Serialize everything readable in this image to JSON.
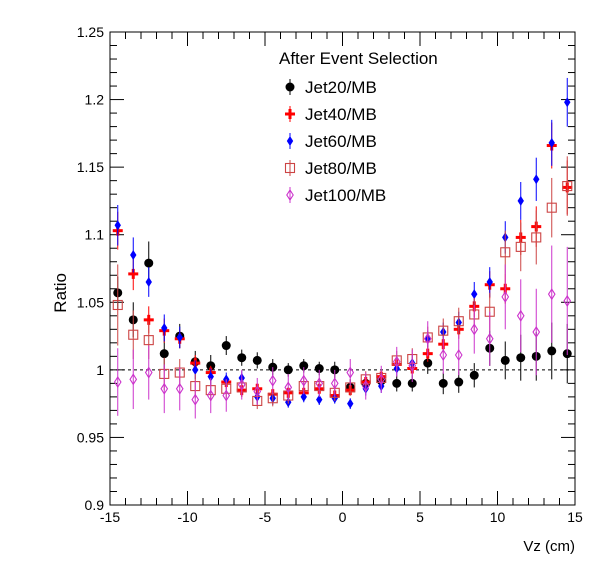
{
  "chart_data": {
    "type": "scatter",
    "title": "",
    "xlabel": "Vz (cm)",
    "ylabel": "Ratio",
    "xlim": [
      -15,
      15
    ],
    "ylim": [
      0.9,
      1.25
    ],
    "x_ticks": [
      -15,
      -10,
      -5,
      0,
      5,
      10,
      15
    ],
    "x_tick_labels": [
      "-15",
      "-10",
      "-5",
      "0",
      "5",
      "10",
      "15"
    ],
    "y_ticks": [
      0.9,
      0.95,
      1.0,
      1.05,
      1.1,
      1.15,
      1.2,
      1.25
    ],
    "y_tick_labels": [
      "0.9",
      "0.95",
      "1",
      "1.05",
      "1.1",
      "1.15",
      "1.2",
      "1.25"
    ],
    "reference_line": 1.0,
    "legend_title": "After Event Selection",
    "legend_position": "top-right",
    "x": [
      -14.5,
      -13.5,
      -12.5,
      -11.5,
      -10.5,
      -9.5,
      -8.5,
      -7.5,
      -6.5,
      -5.5,
      -4.5,
      -3.5,
      -2.5,
      -1.5,
      -0.5,
      0.5,
      1.5,
      2.5,
      3.5,
      4.5,
      5.5,
      6.5,
      7.5,
      8.5,
      9.5,
      10.5,
      11.5,
      12.5,
      13.5,
      14.5
    ],
    "series": [
      {
        "name": "Jet20/MB",
        "marker": "filled-circle",
        "color": "#000000",
        "values": [
          1.057,
          1.037,
          1.079,
          1.012,
          1.025,
          1.006,
          1.003,
          1.018,
          1.009,
          1.007,
          1.002,
          1.0,
          1.003,
          1.001,
          1.0,
          0.987,
          0.99,
          0.992,
          0.99,
          0.99,
          1.005,
          0.99,
          0.991,
          0.996,
          1.016,
          1.007,
          1.009,
          1.01,
          1.014,
          1.012
        ],
        "errors": [
          0.012,
          0.013,
          0.016,
          0.013,
          0.009,
          0.008,
          0.008,
          0.007,
          0.006,
          0.006,
          0.006,
          0.005,
          0.005,
          0.005,
          0.006,
          0.006,
          0.006,
          0.006,
          0.006,
          0.006,
          0.008,
          0.008,
          0.008,
          0.009,
          0.013,
          0.014,
          0.017,
          0.018,
          0.021,
          0.022
        ]
      },
      {
        "name": "Jet40/MB",
        "marker": "plus",
        "color": "#ff0000",
        "values": [
          1.103,
          1.071,
          1.037,
          1.029,
          1.023,
          1.005,
          0.998,
          0.991,
          0.985,
          0.986,
          0.982,
          0.983,
          0.983,
          0.986,
          0.981,
          0.985,
          0.991,
          0.995,
          1.004,
          1.001,
          1.012,
          1.019,
          1.03,
          1.047,
          1.063,
          1.06,
          1.098,
          1.106,
          1.166,
          1.135
        ],
        "errors": [
          0.014,
          0.012,
          0.01,
          0.009,
          0.007,
          0.006,
          0.005,
          0.005,
          0.005,
          0.004,
          0.004,
          0.004,
          0.004,
          0.004,
          0.004,
          0.004,
          0.004,
          0.004,
          0.005,
          0.005,
          0.006,
          0.006,
          0.007,
          0.008,
          0.01,
          0.011,
          0.013,
          0.015,
          0.017,
          0.02
        ]
      },
      {
        "name": "Jet60/MB",
        "marker": "filled-diamond",
        "color": "#0000ff",
        "values": [
          1.107,
          1.085,
          1.065,
          1.031,
          1.024,
          1.0,
          0.995,
          0.993,
          0.994,
          0.98,
          0.979,
          0.976,
          0.98,
          0.978,
          0.979,
          0.975,
          0.986,
          0.988,
          1.001,
          1.005,
          1.023,
          1.028,
          1.035,
          1.056,
          1.065,
          1.098,
          1.125,
          1.141,
          1.168,
          1.198
        ],
        "errors": [
          0.015,
          0.013,
          0.011,
          0.01,
          0.008,
          0.007,
          0.006,
          0.005,
          0.005,
          0.005,
          0.005,
          0.004,
          0.004,
          0.004,
          0.004,
          0.004,
          0.005,
          0.005,
          0.005,
          0.006,
          0.006,
          0.007,
          0.008,
          0.009,
          0.011,
          0.012,
          0.014,
          0.016,
          0.017,
          0.018
        ]
      },
      {
        "name": "Jet80/MB",
        "marker": "open-square",
        "color": "#cc4444",
        "values": [
          1.048,
          1.026,
          1.022,
          0.997,
          0.998,
          0.988,
          0.985,
          0.986,
          0.987,
          0.977,
          0.979,
          0.981,
          0.988,
          0.988,
          0.983,
          0.987,
          0.993,
          0.994,
          1.007,
          1.008,
          1.024,
          1.029,
          1.036,
          1.041,
          1.043,
          1.087,
          1.091,
          1.098,
          1.12,
          1.136
        ],
        "errors": [
          0.03,
          0.018,
          0.014,
          0.012,
          0.01,
          0.009,
          0.008,
          0.007,
          0.007,
          0.006,
          0.006,
          0.006,
          0.006,
          0.006,
          0.006,
          0.006,
          0.006,
          0.006,
          0.007,
          0.008,
          0.008,
          0.009,
          0.01,
          0.012,
          0.014,
          0.016,
          0.018,
          0.02,
          0.022,
          0.022
        ]
      },
      {
        "name": "Jet100/MB",
        "marker": "open-diamond",
        "color": "#cc33cc",
        "values": [
          0.991,
          0.993,
          0.998,
          0.986,
          0.986,
          0.978,
          0.981,
          0.981,
          0.989,
          0.984,
          0.992,
          0.987,
          0.992,
          0.99,
          0.99,
          0.998,
          0.988,
          0.993,
          1.006,
          1.003,
          1.023,
          1.011,
          1.011,
          1.03,
          1.023,
          1.054,
          1.04,
          1.028,
          1.056,
          1.051
        ],
        "errors": [
          0.025,
          0.022,
          0.02,
          0.018,
          0.016,
          0.014,
          0.013,
          0.012,
          0.011,
          0.01,
          0.01,
          0.01,
          0.01,
          0.01,
          0.01,
          0.01,
          0.01,
          0.01,
          0.011,
          0.012,
          0.013,
          0.014,
          0.015,
          0.018,
          0.02,
          0.024,
          0.027,
          0.032,
          0.036,
          0.04
        ]
      }
    ]
  }
}
